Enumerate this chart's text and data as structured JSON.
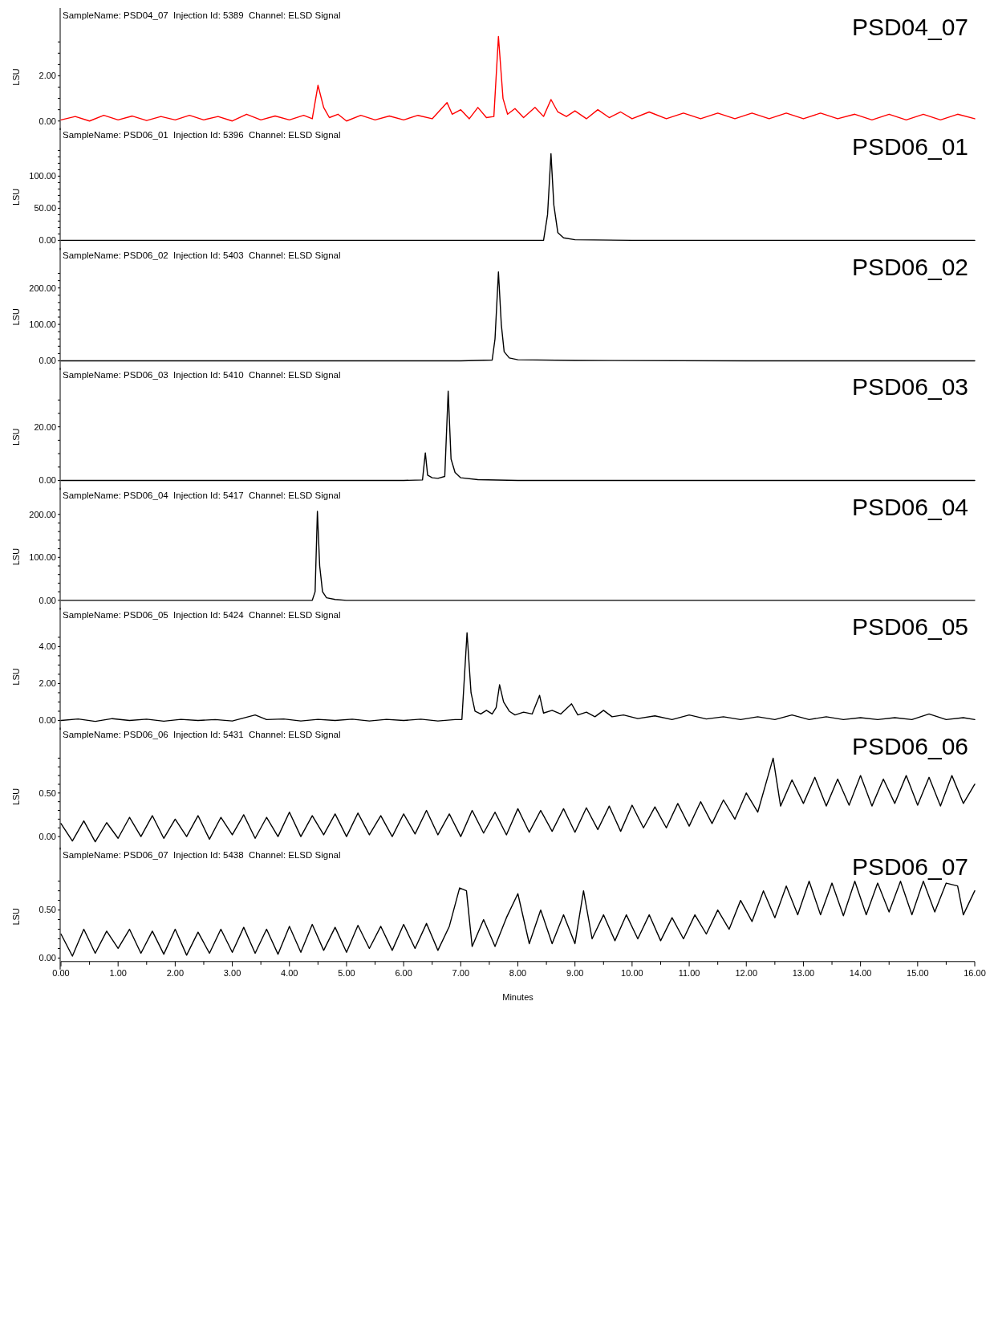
{
  "chart_data": [
    {
      "type": "line",
      "title": "SampleName: PSD04_07  Injection Id: 5389  Channel: ELSD Signal",
      "ylabel": "LSU",
      "annotations": [
        "PSD04_07"
      ],
      "xlim": [
        0,
        16
      ],
      "ylim": [
        -0.4,
        5.0
      ],
      "tick_labels": "y",
      "yticks": [
        {
          "value": 0,
          "label": "0.00"
        },
        {
          "value": 0.5,
          "label": null
        },
        {
          "value": 1,
          "label": null
        },
        {
          "value": 1.5,
          "label": null
        },
        {
          "value": 2,
          "label": "2.00"
        },
        {
          "value": 2.5,
          "label": null
        },
        {
          "value": 3,
          "label": null
        },
        {
          "value": 3.5,
          "label": null
        }
      ],
      "series": [
        {
          "color": "#ff0000",
          "x": [
            0,
            0.25,
            0.5,
            0.75,
            1.0,
            1.25,
            1.5,
            1.75,
            2.0,
            2.25,
            2.5,
            2.75,
            3.0,
            3.25,
            3.5,
            3.75,
            4.0,
            4.25,
            4.4,
            4.5,
            4.6,
            4.7,
            4.85,
            5.0,
            5.25,
            5.5,
            5.75,
            6.0,
            6.25,
            6.5,
            6.76,
            6.85,
            7.0,
            7.15,
            7.3,
            7.45,
            7.58,
            7.66,
            7.74,
            7.82,
            7.95,
            8.1,
            8.3,
            8.45,
            8.58,
            8.7,
            8.85,
            9.0,
            9.2,
            9.4,
            9.6,
            9.8,
            10.0,
            10.3,
            10.6,
            10.9,
            11.2,
            11.5,
            11.8,
            12.1,
            12.4,
            12.7,
            13.0,
            13.3,
            13.6,
            13.9,
            14.2,
            14.5,
            14.8,
            15.1,
            15.4,
            15.7,
            16.0
          ],
          "values": [
            0.05,
            0.2,
            0.0,
            0.25,
            0.05,
            0.22,
            0.02,
            0.2,
            0.05,
            0.25,
            0.05,
            0.2,
            0.0,
            0.3,
            0.05,
            0.22,
            0.05,
            0.25,
            0.1,
            1.58,
            0.6,
            0.15,
            0.3,
            0.0,
            0.25,
            0.05,
            0.22,
            0.05,
            0.25,
            0.1,
            0.82,
            0.3,
            0.5,
            0.1,
            0.6,
            0.15,
            0.2,
            3.74,
            1.0,
            0.3,
            0.55,
            0.15,
            0.6,
            0.2,
            0.95,
            0.4,
            0.2,
            0.45,
            0.1,
            0.5,
            0.15,
            0.4,
            0.1,
            0.4,
            0.1,
            0.35,
            0.1,
            0.35,
            0.1,
            0.35,
            0.1,
            0.35,
            0.1,
            0.35,
            0.1,
            0.3,
            0.05,
            0.3,
            0.05,
            0.3,
            0.05,
            0.3,
            0.1
          ]
        }
      ]
    },
    {
      "type": "line",
      "title": "SampleName: PSD06_01  Injection Id: 5396  Channel: ELSD Signal",
      "ylabel": "LSU",
      "annotations": [
        "PSD06_01"
      ],
      "xlim": [
        0,
        16
      ],
      "ylim": [
        -15,
        175
      ],
      "tick_labels": "y",
      "yticks": [
        {
          "value": 0,
          "label": "0.00"
        },
        {
          "value": 10,
          "label": null
        },
        {
          "value": 20,
          "label": null
        },
        {
          "value": 30,
          "label": null
        },
        {
          "value": 40,
          "label": null
        },
        {
          "value": 50,
          "label": "50.00"
        },
        {
          "value": 60,
          "label": null
        },
        {
          "value": 70,
          "label": null
        },
        {
          "value": 80,
          "label": null
        },
        {
          "value": 90,
          "label": null
        },
        {
          "value": 100,
          "label": "100.00"
        },
        {
          "value": 110,
          "label": null
        },
        {
          "value": 120,
          "label": null
        },
        {
          "value": 130,
          "label": null
        },
        {
          "value": 140,
          "label": null
        }
      ],
      "series": [
        {
          "color": "#000000",
          "x": [
            0,
            2,
            4,
            6,
            8,
            8.45,
            8.52,
            8.58,
            8.63,
            8.7,
            8.8,
            9,
            10,
            12,
            14,
            16
          ],
          "values": [
            0,
            0,
            0,
            0,
            0,
            0,
            40,
            135,
            55,
            12,
            4,
            1,
            0,
            0,
            0,
            0
          ]
        }
      ]
    },
    {
      "type": "line",
      "title": "SampleName: PSD06_02  Injection Id: 5403  Channel: ELSD Signal",
      "ylabel": "LSU",
      "annotations": [
        "PSD06_02"
      ],
      "xlim": [
        0,
        16
      ],
      "ylim": [
        -25,
        310
      ],
      "tick_labels": "y",
      "yticks": [
        {
          "value": 0,
          "label": "0.00"
        },
        {
          "value": 20,
          "label": null
        },
        {
          "value": 40,
          "label": null
        },
        {
          "value": 60,
          "label": null
        },
        {
          "value": 80,
          "label": null
        },
        {
          "value": 100,
          "label": "100.00"
        },
        {
          "value": 120,
          "label": null
        },
        {
          "value": 140,
          "label": null
        },
        {
          "value": 160,
          "label": null
        },
        {
          "value": 180,
          "label": null
        },
        {
          "value": 200,
          "label": "200.00"
        },
        {
          "value": 220,
          "label": null
        },
        {
          "value": 240,
          "label": null
        }
      ],
      "series": [
        {
          "color": "#000000",
          "x": [
            0,
            2,
            4,
            6,
            7,
            7.55,
            7.6,
            7.66,
            7.71,
            7.76,
            7.85,
            8,
            9,
            12,
            16
          ],
          "values": [
            0,
            0,
            0,
            0,
            0,
            2,
            60,
            244,
            100,
            25,
            8,
            3,
            1,
            0,
            0
          ]
        }
      ]
    },
    {
      "type": "line",
      "title": "SampleName: PSD06_03  Injection Id: 5410  Channel: ELSD Signal",
      "ylabel": "LSU",
      "annotations": [
        "PSD06_03"
      ],
      "xlim": [
        0,
        16
      ],
      "ylim": [
        -3.5,
        42
      ],
      "tick_labels": "y",
      "yticks": [
        {
          "value": 0,
          "label": "0.00"
        },
        {
          "value": 5,
          "label": null
        },
        {
          "value": 10,
          "label": null
        },
        {
          "value": 15,
          "label": null
        },
        {
          "value": 20,
          "label": "20.00"
        },
        {
          "value": 25,
          "label": null
        },
        {
          "value": 30,
          "label": null
        }
      ],
      "series": [
        {
          "color": "#000000",
          "x": [
            0,
            2,
            4,
            6,
            6.33,
            6.38,
            6.42,
            6.5,
            6.6,
            6.72,
            6.78,
            6.83,
            6.9,
            7.0,
            7.3,
            8,
            10,
            12,
            14,
            16
          ],
          "values": [
            0,
            0,
            0,
            0,
            0.2,
            10.3,
            2,
            1,
            0.8,
            1.5,
            33.3,
            8,
            3,
            1,
            0.3,
            0,
            0,
            0,
            0,
            0
          ]
        }
      ]
    },
    {
      "type": "line",
      "title": "SampleName: PSD06_04  Injection Id: 5417  Channel: ELSD Signal",
      "ylabel": "LSU",
      "annotations": [
        "PSD06_04"
      ],
      "xlim": [
        0,
        16
      ],
      "ylim": [
        -22,
        262
      ],
      "tick_labels": "y",
      "yticks": [
        {
          "value": 0,
          "label": "0.00"
        },
        {
          "value": 20,
          "label": null
        },
        {
          "value": 40,
          "label": null
        },
        {
          "value": 60,
          "label": null
        },
        {
          "value": 80,
          "label": null
        },
        {
          "value": 100,
          "label": "100.00"
        },
        {
          "value": 120,
          "label": null
        },
        {
          "value": 140,
          "label": null
        },
        {
          "value": 160,
          "label": null
        },
        {
          "value": 180,
          "label": null
        },
        {
          "value": 200,
          "label": "200.00"
        }
      ],
      "series": [
        {
          "color": "#000000",
          "x": [
            0,
            2,
            4,
            4.4,
            4.45,
            4.49,
            4.53,
            4.58,
            4.65,
            4.8,
            5,
            8,
            12,
            16
          ],
          "values": [
            0,
            0,
            0,
            0,
            20,
            207,
            80,
            20,
            6,
            2,
            0,
            0,
            0,
            0
          ]
        }
      ]
    },
    {
      "type": "line",
      "title": "SampleName: PSD06_05  Injection Id: 5424  Channel: ELSD Signal",
      "ylabel": "LSU",
      "annotations": [
        "PSD06_05"
      ],
      "xlim": [
        0,
        16
      ],
      "ylim": [
        -0.5,
        6.1
      ],
      "tick_labels": "y",
      "yticks": [
        {
          "value": 0,
          "label": "0.00"
        },
        {
          "value": 0.5,
          "label": null
        },
        {
          "value": 1,
          "label": null
        },
        {
          "value": 1.5,
          "label": null
        },
        {
          "value": 2,
          "label": "2.00"
        },
        {
          "value": 2.5,
          "label": null
        },
        {
          "value": 3,
          "label": null
        },
        {
          "value": 3.5,
          "label": null
        },
        {
          "value": 4,
          "label": "4.00"
        },
        {
          "value": 4.5,
          "label": null
        }
      ],
      "series": [
        {
          "color": "#000000",
          "x": [
            0,
            0.3,
            0.6,
            0.9,
            1.2,
            1.5,
            1.8,
            2.1,
            2.4,
            2.7,
            3.0,
            3.4,
            3.6,
            3.9,
            4.2,
            4.5,
            4.8,
            5.1,
            5.4,
            5.7,
            6.0,
            6.3,
            6.6,
            6.9,
            7.02,
            7.11,
            7.18,
            7.25,
            7.35,
            7.45,
            7.55,
            7.62,
            7.68,
            7.75,
            7.85,
            7.95,
            8.1,
            8.25,
            8.38,
            8.45,
            8.6,
            8.75,
            8.94,
            9.05,
            9.2,
            9.35,
            9.5,
            9.65,
            9.85,
            10.1,
            10.4,
            10.7,
            11.0,
            11.3,
            11.6,
            11.9,
            12.2,
            12.5,
            12.8,
            13.1,
            13.4,
            13.7,
            14.0,
            14.3,
            14.6,
            14.9,
            15.2,
            15.5,
            15.8,
            16.0
          ],
          "values": [
            0.0,
            0.08,
            -0.05,
            0.1,
            0.0,
            0.07,
            -0.04,
            0.06,
            0.0,
            0.05,
            -0.03,
            0.3,
            0.05,
            0.08,
            -0.03,
            0.06,
            0.0,
            0.07,
            -0.03,
            0.06,
            0.0,
            0.07,
            -0.03,
            0.05,
            0.05,
            4.74,
            1.5,
            0.5,
            0.35,
            0.55,
            0.35,
            0.7,
            1.93,
            1.0,
            0.5,
            0.3,
            0.45,
            0.35,
            1.36,
            0.4,
            0.55,
            0.35,
            0.9,
            0.3,
            0.45,
            0.2,
            0.55,
            0.2,
            0.3,
            0.1,
            0.25,
            0.05,
            0.3,
            0.08,
            0.2,
            0.05,
            0.2,
            0.05,
            0.3,
            0.05,
            0.2,
            0.05,
            0.15,
            0.05,
            0.15,
            0.05,
            0.35,
            0.05,
            0.15,
            0.05
          ]
        }
      ]
    },
    {
      "type": "line",
      "title": "SampleName: PSD06_06  Injection Id: 5431  Channel: ELSD Signal",
      "ylabel": "LSU",
      "annotations": [
        "PSD06_06"
      ],
      "xlim": [
        0,
        16
      ],
      "ylim": [
        -0.15,
        1.25
      ],
      "tick_labels": "y",
      "yticks": [
        {
          "value": 0,
          "label": "0.00"
        },
        {
          "value": 0.1,
          "label": null
        },
        {
          "value": 0.2,
          "label": null
        },
        {
          "value": 0.3,
          "label": null
        },
        {
          "value": 0.4,
          "label": null
        },
        {
          "value": 0.5,
          "label": "0.50"
        },
        {
          "value": 0.6,
          "label": null
        },
        {
          "value": 0.7,
          "label": null
        },
        {
          "value": 0.8,
          "label": null
        },
        {
          "value": 0.9,
          "label": null
        }
      ],
      "series": [
        {
          "color": "#000000",
          "x": [
            0,
            0.2,
            0.4,
            0.6,
            0.8,
            1.0,
            1.2,
            1.4,
            1.6,
            1.8,
            2.0,
            2.2,
            2.4,
            2.6,
            2.8,
            3.0,
            3.2,
            3.4,
            3.6,
            3.8,
            4.0,
            4.2,
            4.4,
            4.6,
            4.8,
            5.0,
            5.2,
            5.4,
            5.6,
            5.8,
            6.0,
            6.2,
            6.4,
            6.6,
            6.8,
            7.0,
            7.2,
            7.4,
            7.6,
            7.8,
            8.0,
            8.2,
            8.4,
            8.6,
            8.8,
            9.0,
            9.2,
            9.4,
            9.6,
            9.8,
            10.0,
            10.2,
            10.4,
            10.6,
            10.8,
            11.0,
            11.2,
            11.4,
            11.6,
            11.8,
            12.0,
            12.2,
            12.47,
            12.6,
            12.8,
            13.0,
            13.2,
            13.4,
            13.6,
            13.8,
            14.0,
            14.2,
            14.4,
            14.6,
            14.8,
            15.0,
            15.2,
            15.4,
            15.6,
            15.8,
            16.0
          ],
          "values": [
            0.15,
            -0.05,
            0.18,
            -0.06,
            0.16,
            -0.02,
            0.22,
            0.0,
            0.24,
            -0.02,
            0.2,
            0.0,
            0.24,
            -0.03,
            0.22,
            0.02,
            0.25,
            -0.02,
            0.22,
            0.0,
            0.28,
            0.0,
            0.24,
            0.02,
            0.26,
            0.0,
            0.27,
            0.02,
            0.24,
            0.0,
            0.26,
            0.03,
            0.3,
            0.02,
            0.26,
            0.0,
            0.3,
            0.04,
            0.28,
            0.02,
            0.32,
            0.05,
            0.3,
            0.06,
            0.32,
            0.05,
            0.33,
            0.08,
            0.35,
            0.06,
            0.36,
            0.1,
            0.34,
            0.1,
            0.38,
            0.12,
            0.4,
            0.15,
            0.42,
            0.2,
            0.5,
            0.28,
            0.9,
            0.35,
            0.65,
            0.38,
            0.68,
            0.35,
            0.66,
            0.36,
            0.7,
            0.35,
            0.66,
            0.38,
            0.7,
            0.36,
            0.68,
            0.35,
            0.7,
            0.38,
            0.6
          ]
        }
      ]
    },
    {
      "type": "line",
      "title": "SampleName: PSD06_07  Injection Id: 5438  Channel: ELSD Signal",
      "ylabel": "LSU",
      "xlabel": "Minutes",
      "annotations": [
        "PSD06_07"
      ],
      "xlim": [
        0,
        16
      ],
      "ylim": [
        -0.12,
        1.15
      ],
      "xticks": [
        {
          "value": 0,
          "label": "0.00"
        },
        {
          "value": 0.5,
          "label": null
        },
        {
          "value": 1,
          "label": "1.00"
        },
        {
          "value": 1.5,
          "label": null
        },
        {
          "value": 2,
          "label": "2.00"
        },
        {
          "value": 2.5,
          "label": null
        },
        {
          "value": 3,
          "label": "3.00"
        },
        {
          "value": 3.5,
          "label": null
        },
        {
          "value": 4,
          "label": "4.00"
        },
        {
          "value": 4.5,
          "label": null
        },
        {
          "value": 5,
          "label": "5.00"
        },
        {
          "value": 5.5,
          "label": null
        },
        {
          "value": 6,
          "label": "6.00"
        },
        {
          "value": 6.5,
          "label": null
        },
        {
          "value": 7,
          "label": "7.00"
        },
        {
          "value": 7.5,
          "label": null
        },
        {
          "value": 8,
          "label": "8.00"
        },
        {
          "value": 8.5,
          "label": null
        },
        {
          "value": 9,
          "label": "9.00"
        },
        {
          "value": 9.5,
          "label": null
        },
        {
          "value": 10,
          "label": "10.00"
        },
        {
          "value": 10.5,
          "label": null
        },
        {
          "value": 11,
          "label": "11.00"
        },
        {
          "value": 11.5,
          "label": null
        },
        {
          "value": 12,
          "label": "12.00"
        },
        {
          "value": 12.5,
          "label": null
        },
        {
          "value": 13,
          "label": "13.00"
        },
        {
          "value": 13.5,
          "label": null
        },
        {
          "value": 14,
          "label": "14.00"
        },
        {
          "value": 14.5,
          "label": null
        },
        {
          "value": 15,
          "label": "15.00"
        },
        {
          "value": 15.5,
          "label": null
        },
        {
          "value": 16,
          "label": "16.00"
        }
      ],
      "yticks": [
        {
          "value": 0,
          "label": "0.00"
        },
        {
          "value": 0.1,
          "label": null
        },
        {
          "value": 0.2,
          "label": null
        },
        {
          "value": 0.3,
          "label": null
        },
        {
          "value": 0.4,
          "label": null
        },
        {
          "value": 0.5,
          "label": "0.50"
        },
        {
          "value": 0.6,
          "label": null
        },
        {
          "value": 0.7,
          "label": null
        },
        {
          "value": 0.8,
          "label": null
        }
      ],
      "series": [
        {
          "color": "#000000",
          "x": [
            0,
            0.2,
            0.4,
            0.6,
            0.8,
            1.0,
            1.2,
            1.4,
            1.6,
            1.8,
            2.0,
            2.2,
            2.4,
            2.6,
            2.8,
            3.0,
            3.2,
            3.4,
            3.6,
            3.8,
            4.0,
            4.2,
            4.4,
            4.6,
            4.8,
            5.0,
            5.2,
            5.4,
            5.6,
            5.8,
            6.0,
            6.2,
            6.4,
            6.6,
            6.8,
            6.98,
            7.1,
            7.2,
            7.4,
            7.6,
            7.8,
            8.0,
            8.2,
            8.4,
            8.6,
            8.8,
            9.0,
            9.15,
            9.3,
            9.5,
            9.7,
            9.9,
            10.1,
            10.3,
            10.5,
            10.7,
            10.9,
            11.1,
            11.3,
            11.5,
            11.7,
            11.9,
            12.1,
            12.3,
            12.5,
            12.7,
            12.9,
            13.1,
            13.3,
            13.5,
            13.7,
            13.9,
            14.1,
            14.3,
            14.5,
            14.7,
            14.9,
            15.1,
            15.3,
            15.5,
            15.7,
            15.8,
            16.0
          ],
          "values": [
            0.25,
            0.02,
            0.3,
            0.05,
            0.28,
            0.1,
            0.3,
            0.05,
            0.28,
            0.04,
            0.3,
            0.03,
            0.27,
            0.05,
            0.3,
            0.06,
            0.32,
            0.05,
            0.3,
            0.04,
            0.33,
            0.06,
            0.35,
            0.08,
            0.32,
            0.06,
            0.34,
            0.1,
            0.33,
            0.08,
            0.35,
            0.1,
            0.36,
            0.08,
            0.33,
            0.73,
            0.7,
            0.12,
            0.4,
            0.12,
            0.42,
            0.67,
            0.15,
            0.5,
            0.15,
            0.45,
            0.15,
            0.7,
            0.2,
            0.45,
            0.18,
            0.45,
            0.2,
            0.45,
            0.18,
            0.42,
            0.2,
            0.45,
            0.25,
            0.5,
            0.3,
            0.6,
            0.38,
            0.7,
            0.42,
            0.75,
            0.45,
            0.8,
            0.45,
            0.78,
            0.44,
            0.8,
            0.45,
            0.78,
            0.48,
            0.8,
            0.45,
            0.8,
            0.48,
            0.78,
            0.75,
            0.45,
            0.7
          ]
        }
      ]
    }
  ]
}
